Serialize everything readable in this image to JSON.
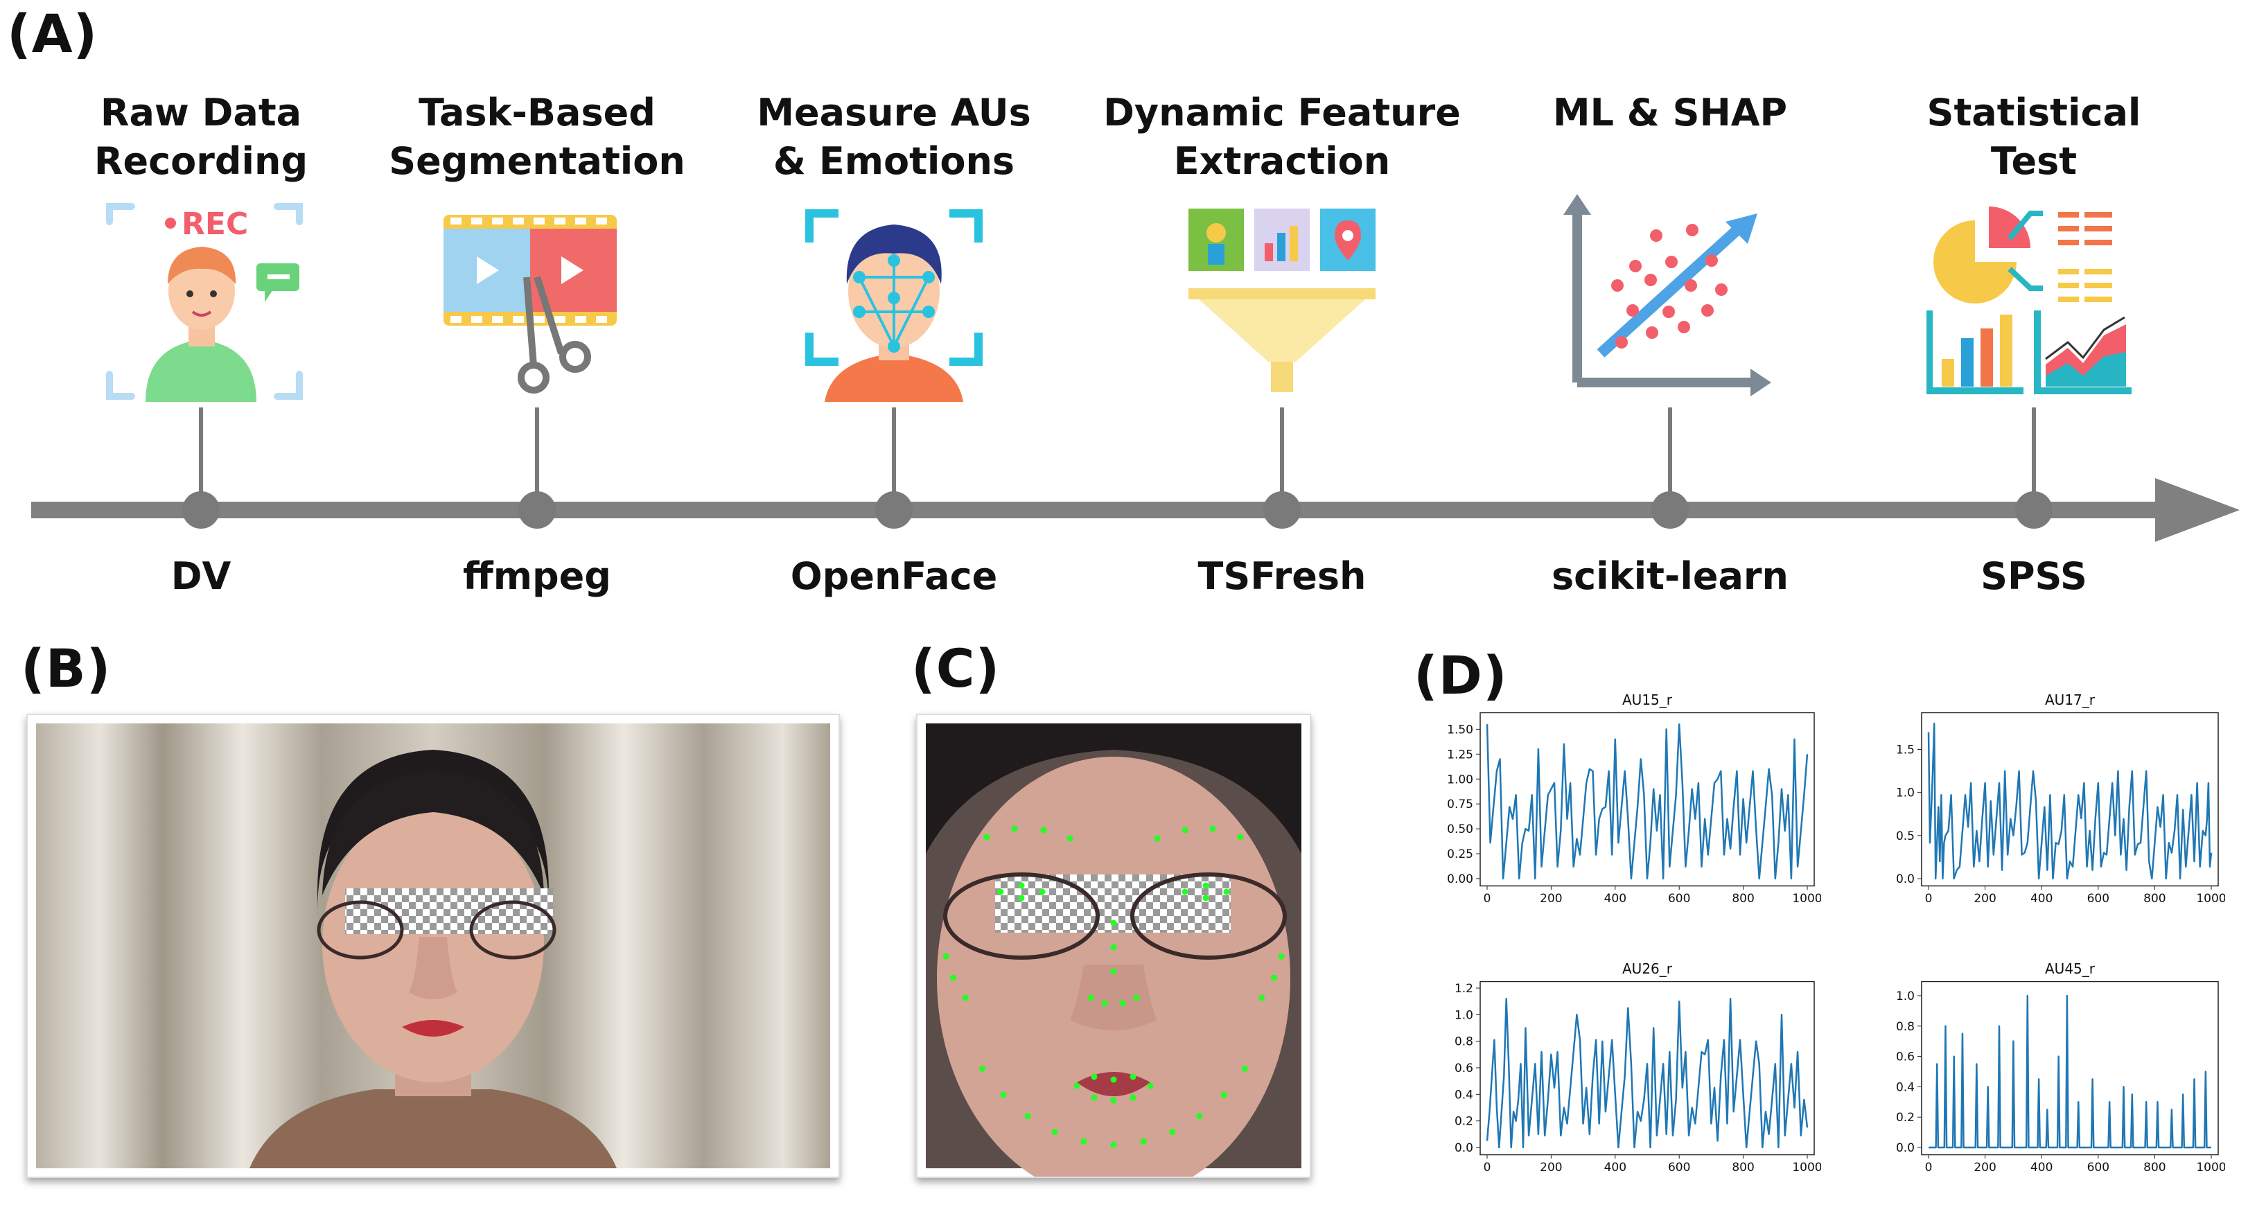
{
  "panels": {
    "a": "(A)",
    "b": "(B)",
    "c": "(C)",
    "d": "(D)"
  },
  "pipeline": {
    "steps": [
      {
        "title": "Raw Data\nRecording",
        "tool": "DV",
        "icon": "recording-person-icon",
        "badge": "REC"
      },
      {
        "title": "Task-Based\nSegmentation",
        "tool": "ffmpeg",
        "icon": "video-cut-icon"
      },
      {
        "title": "Measure AUs\n& Emotions",
        "tool": "OpenFace",
        "icon": "face-scan-icon"
      },
      {
        "title": "Dynamic Feature\nExtraction",
        "tool": "TSFresh",
        "icon": "feature-funnel-icon"
      },
      {
        "title": "ML & SHAP",
        "tool": "scikit-learn",
        "icon": "scatter-trend-icon"
      },
      {
        "title": "Statistical\nTest",
        "tool": "SPSS",
        "icon": "statistics-dashboard-icon"
      }
    ],
    "colors": {
      "axis": "#808080",
      "node": "#7a7a7a"
    }
  },
  "photos": {
    "b": {
      "name": "participant-face-photo"
    },
    "c": {
      "name": "participant-face-landmarks-photo",
      "landmark_color": "#22ff22"
    }
  },
  "chart_data": [
    {
      "type": "line",
      "title": "AU15_r",
      "xlim": [
        0,
        1000
      ],
      "ylim": [
        0,
        1.6
      ],
      "xticks": [
        0,
        200,
        400,
        600,
        800,
        1000
      ],
      "yticks": [
        "0.00",
        "0.25",
        "0.50",
        "0.75",
        "1.00",
        "1.25",
        "1.50"
      ],
      "ytick_values": [
        0,
        0.25,
        0.5,
        0.75,
        1.0,
        1.25,
        1.5
      ],
      "color": "#1f77b4",
      "x": [
        0,
        40,
        80,
        120,
        160,
        200,
        240,
        280,
        320,
        360,
        400,
        440,
        480,
        520,
        560,
        600,
        640,
        680,
        720,
        760,
        800,
        840,
        880,
        920,
        960,
        1000
      ],
      "values": [
        1.55,
        1.2,
        0.6,
        0.5,
        1.3,
        0.9,
        1.35,
        0.4,
        1.1,
        0.7,
        1.4,
        0.6,
        1.2,
        0.9,
        1.5,
        1.55,
        0.9,
        0.6,
        1.0,
        0.3,
        0.8,
        0.5,
        1.1,
        0.9,
        1.4,
        1.25
      ]
    },
    {
      "type": "line",
      "title": "AU17_r",
      "xlim": [
        0,
        1000
      ],
      "ylim": [
        0,
        1.85
      ],
      "xticks": [
        0,
        200,
        400,
        600,
        800,
        1000
      ],
      "yticks": [
        "0.0",
        "0.5",
        "1.0",
        "1.5"
      ],
      "ytick_values": [
        0,
        0.5,
        1.0,
        1.5
      ],
      "color": "#1f77b4",
      "x": [
        0,
        20,
        40,
        60,
        100,
        140,
        180,
        220,
        260,
        300,
        340,
        380,
        420,
        460,
        500,
        540,
        580,
        620,
        660,
        700,
        740,
        780,
        820,
        860,
        900,
        940,
        980,
        1000
      ],
      "values": [
        1.7,
        1.8,
        0.2,
        0.5,
        0.1,
        0.6,
        0.2,
        0.9,
        0.1,
        0.5,
        0.3,
        0.9,
        0.1,
        0.4,
        0.2,
        0.7,
        0.1,
        0.3,
        0.5,
        0.1,
        0.4,
        0.2,
        0.6,
        0.3,
        0.8,
        0.2,
        0.5,
        0.3
      ]
    },
    {
      "type": "line",
      "title": "AU26_r",
      "xlim": [
        0,
        1000
      ],
      "ylim": [
        0,
        1.2
      ],
      "xticks": [
        0,
        200,
        400,
        600,
        800,
        1000
      ],
      "yticks": [
        "0.0",
        "0.2",
        "0.4",
        "0.6",
        "0.8",
        "1.0",
        "1.2"
      ],
      "ytick_values": [
        0,
        0.2,
        0.4,
        0.6,
        0.8,
        1.0,
        1.2
      ],
      "color": "#1f77b4",
      "x": [
        0,
        30,
        60,
        90,
        120,
        160,
        200,
        240,
        280,
        320,
        360,
        400,
        440,
        480,
        520,
        560,
        600,
        640,
        680,
        720,
        760,
        800,
        840,
        880,
        920,
        960,
        1000
      ],
      "values": [
        0.05,
        0.3,
        1.12,
        0.2,
        0.9,
        0.1,
        0.7,
        0.3,
        1.0,
        0.1,
        0.8,
        0.4,
        1.05,
        0.2,
        0.9,
        0.1,
        1.1,
        0.3,
        0.7,
        0.05,
        1.12,
        0.4,
        0.8,
        0.1,
        1.0,
        0.3,
        0.15
      ]
    },
    {
      "type": "line",
      "title": "AU45_r",
      "xlim": [
        0,
        1000
      ],
      "ylim": [
        0,
        1.05
      ],
      "xticks": [
        0,
        200,
        400,
        600,
        800,
        1000
      ],
      "yticks": [
        "0.0",
        "0.2",
        "0.4",
        "0.6",
        "0.8",
        "1.0"
      ],
      "ytick_values": [
        0,
        0.2,
        0.4,
        0.6,
        0.8,
        1.0
      ],
      "color": "#1f77b4",
      "spikes": [
        [
          30,
          0.55
        ],
        [
          60,
          0.8
        ],
        [
          90,
          0.6
        ],
        [
          120,
          0.75
        ],
        [
          170,
          0.55
        ],
        [
          210,
          0.4
        ],
        [
          250,
          0.8
        ],
        [
          300,
          0.7
        ],
        [
          350,
          1.0
        ],
        [
          390,
          0.45
        ],
        [
          420,
          0.25
        ],
        [
          460,
          0.6
        ],
        [
          490,
          1.0
        ],
        [
          530,
          0.3
        ],
        [
          580,
          0.45
        ],
        [
          640,
          0.3
        ],
        [
          690,
          0.4
        ],
        [
          720,
          0.35
        ],
        [
          770,
          0.3
        ],
        [
          810,
          0.3
        ],
        [
          860,
          0.25
        ],
        [
          900,
          0.35
        ],
        [
          940,
          0.45
        ],
        [
          980,
          0.5
        ]
      ]
    }
  ]
}
